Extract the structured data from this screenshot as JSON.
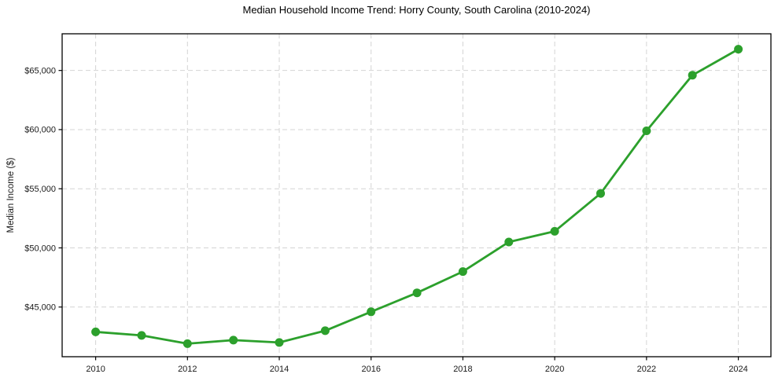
{
  "chart_data": {
    "type": "line",
    "title": "Median Household Income Trend: Horry County, South Carolina (2010-2024)",
    "xlabel": "",
    "ylabel": "Median Income ($)",
    "x": [
      2010,
      2011,
      2012,
      2013,
      2014,
      2015,
      2016,
      2017,
      2018,
      2019,
      2020,
      2021,
      2022,
      2023,
      2024
    ],
    "values": [
      42900,
      42600,
      41900,
      42200,
      42000,
      43000,
      44600,
      46200,
      48000,
      50500,
      51400,
      54600,
      59900,
      64600,
      66800
    ],
    "x_ticks": [
      2010,
      2012,
      2014,
      2016,
      2018,
      2020,
      2022,
      2024
    ],
    "x_tick_labels": [
      "2010",
      "2012",
      "2014",
      "2016",
      "2018",
      "2020",
      "2022",
      "2024"
    ],
    "y_ticks": [
      45000,
      50000,
      55000,
      60000,
      65000
    ],
    "y_tick_labels": [
      "$45,000",
      "$50,000",
      "$55,000",
      "$60,000",
      "$65,000"
    ],
    "xlim": [
      2009.27,
      2024.71
    ],
    "ylim": [
      40800,
      68100
    ],
    "grid": true,
    "grid_style": "dashed",
    "legend": false,
    "colors": {
      "line": "#2ca02c",
      "marker": "#2ca02c",
      "grid": "#d4d4d4",
      "spine": "#000000",
      "tick": "#000000",
      "background": "#ffffff"
    }
  }
}
